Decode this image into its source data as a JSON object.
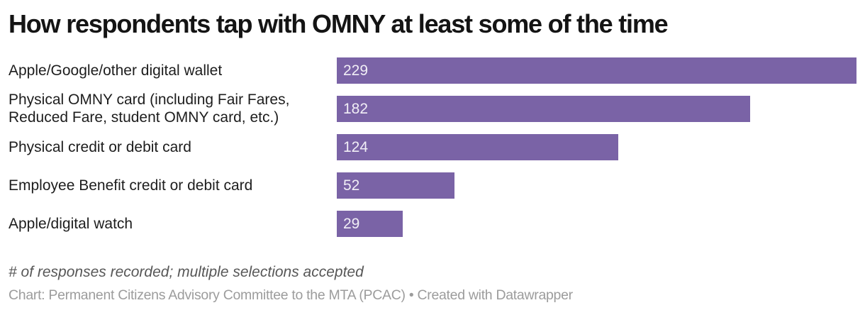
{
  "title": "How respondents tap with OMNY at least some of the time",
  "chart_data": {
    "type": "bar",
    "orientation": "horizontal",
    "title": "How respondents tap with OMNY at least some of the time",
    "categories": [
      "Apple/Google/other digital wallet",
      "Physical OMNY card (including Fair Fares, Reduced Fare, student OMNY card, etc.)",
      "Physical credit or debit card",
      "Employee Benefit credit or debit card",
      "Apple/digital watch"
    ],
    "values": [
      229,
      182,
      124,
      52,
      29
    ],
    "value_label_position": "inside-left",
    "xlim": [
      0,
      229
    ],
    "grid": false,
    "legend": false,
    "bar_color": "#7a63a6",
    "value_label_color": "#f1eef6"
  },
  "footnote": "# of responses recorded; multiple selections accepted",
  "attribution": "Chart: Permanent Citizens Advisory Committee to the MTA (PCAC) • Created with Datawrapper"
}
